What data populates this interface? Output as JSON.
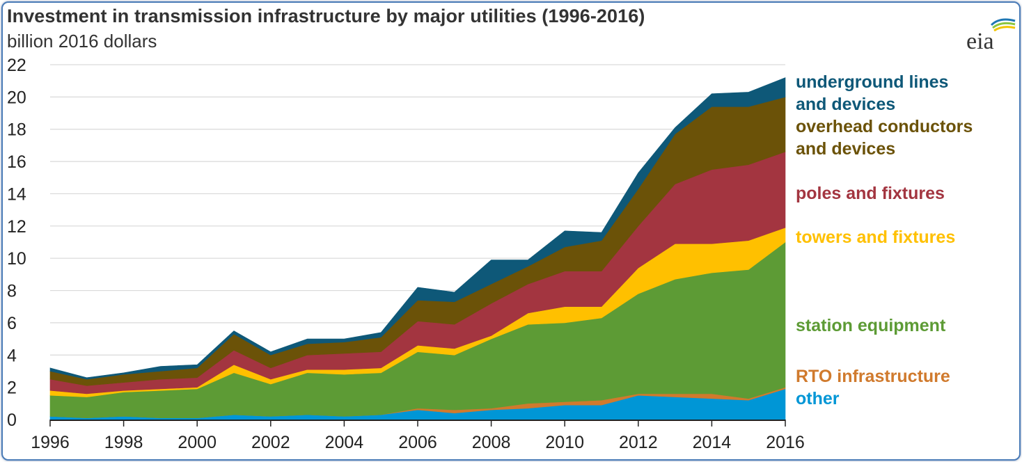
{
  "header": {
    "title": "Investment in transmission infrastructure by major utilities (1996-2016)",
    "subtitle": "billion 2016 dollars",
    "logo_text": "eia"
  },
  "chart_data": {
    "type": "area",
    "title": "Investment in transmission infrastructure by major utilities (1996-2016)",
    "ylabel": "billion 2016 dollars",
    "xlabel": "",
    "ylim": [
      0,
      22
    ],
    "xlim": [
      1996,
      2016
    ],
    "y_ticks": [
      "0",
      "2",
      "4",
      "6",
      "8",
      "10",
      "12",
      "14",
      "16",
      "18",
      "20",
      "22"
    ],
    "x_ticks": [
      "1996",
      "1998",
      "2000",
      "2002",
      "2004",
      "2006",
      "2008",
      "2010",
      "2012",
      "2014",
      "2016"
    ],
    "grid": "horizontal",
    "stacked": true,
    "x": [
      1996,
      1997,
      1998,
      1999,
      2000,
      2001,
      2002,
      2003,
      2004,
      2005,
      2006,
      2007,
      2008,
      2009,
      2010,
      2011,
      2012,
      2013,
      2014,
      2015,
      2016
    ],
    "series": [
      {
        "name": "other",
        "color": "#0096d6",
        "label_lines": [
          "other"
        ],
        "values": [
          0.2,
          0.1,
          0.2,
          0.1,
          0.1,
          0.3,
          0.2,
          0.3,
          0.2,
          0.3,
          0.6,
          0.4,
          0.6,
          0.7,
          0.9,
          0.9,
          1.5,
          1.4,
          1.3,
          1.2,
          1.9
        ]
      },
      {
        "name": "RTO infrastructure",
        "color": "#d07a2d",
        "label_lines": [
          "RTO infrastructure"
        ],
        "values": [
          0.0,
          0.0,
          0.0,
          0.0,
          0.0,
          0.0,
          0.0,
          0.0,
          0.0,
          0.0,
          0.1,
          0.2,
          0.1,
          0.3,
          0.2,
          0.3,
          0.1,
          0.2,
          0.3,
          0.1,
          0.1
        ]
      },
      {
        "name": "station equipment",
        "color": "#5d9b35",
        "label_lines": [
          "station equipment"
        ],
        "values": [
          1.3,
          1.3,
          1.5,
          1.7,
          1.8,
          2.6,
          2.0,
          2.6,
          2.6,
          2.6,
          3.5,
          3.4,
          4.3,
          4.9,
          4.9,
          5.1,
          6.2,
          7.1,
          7.5,
          8.0,
          9.0
        ]
      },
      {
        "name": "towers and fixtures",
        "color": "#ffc000",
        "label_lines": [
          "towers and fixtures"
        ],
        "values": [
          0.3,
          0.2,
          0.1,
          0.1,
          0.1,
          0.5,
          0.3,
          0.2,
          0.3,
          0.3,
          0.4,
          0.4,
          0.2,
          0.7,
          1.0,
          0.7,
          1.6,
          2.2,
          1.8,
          1.8,
          0.9
        ]
      },
      {
        "name": "poles and fixtures",
        "color": "#a33540",
        "label_lines": [
          "poles and fixtures"
        ],
        "values": [
          0.7,
          0.5,
          0.5,
          0.6,
          0.6,
          0.9,
          0.7,
          0.9,
          1.0,
          1.0,
          1.5,
          1.5,
          2.0,
          1.8,
          2.2,
          2.2,
          2.6,
          3.7,
          4.6,
          4.7,
          4.7
        ]
      },
      {
        "name": "overhead conductors and devices",
        "color": "#6b5208",
        "label_lines": [
          "overhead conductors",
          "and devices"
        ],
        "values": [
          0.5,
          0.4,
          0.5,
          0.5,
          0.6,
          1.0,
          0.8,
          0.7,
          0.7,
          0.9,
          1.3,
          1.4,
          1.2,
          1.1,
          1.5,
          1.9,
          2.3,
          3.1,
          3.9,
          3.6,
          3.4
        ]
      },
      {
        "name": "underground lines and devices",
        "color": "#0e5878",
        "label_lines": [
          "underground lines",
          "and devices"
        ],
        "values": [
          0.2,
          0.1,
          0.1,
          0.3,
          0.2,
          0.2,
          0.2,
          0.3,
          0.2,
          0.3,
          0.8,
          0.6,
          1.5,
          0.4,
          1.0,
          0.5,
          1.0,
          0.4,
          0.8,
          0.9,
          1.2
        ]
      }
    ]
  }
}
